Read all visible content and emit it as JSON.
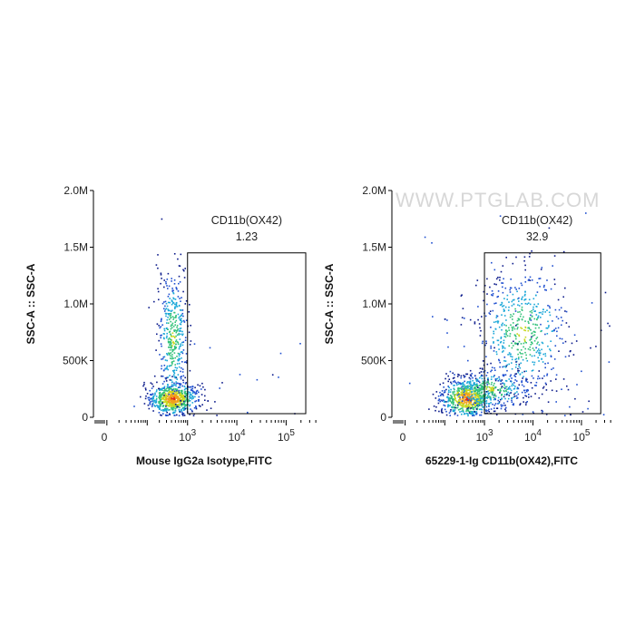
{
  "watermark": "WWW.PTGLAB.COM",
  "colors": {
    "density": [
      "#0b1a8a",
      "#1f4fd0",
      "#1aa7d8",
      "#33c27a",
      "#c7d81e",
      "#f0a11b",
      "#e02a14"
    ],
    "gate": "#000000",
    "axis": "#000000"
  },
  "chart_data": [
    {
      "type": "scatter",
      "title": "",
      "xlabel": "Mouse IgG2a Isotype,FITC",
      "ylabel": "SSC-A :: SSC-A",
      "x_scale": "biexponential",
      "x_ticks": [
        "0",
        "10^3",
        "10^4",
        "10^5"
      ],
      "y_ticks": [
        "0",
        "500K",
        "1.0M",
        "1.5M",
        "2.0M"
      ],
      "ylim": [
        0,
        2000000
      ],
      "gate": {
        "name": "CD11b(OX42)",
        "value": "1.23",
        "x_range": [
          1000,
          250000
        ],
        "y_range": [
          0,
          1450000
        ]
      },
      "populations": [
        {
          "x": 420,
          "y": 170000,
          "count": 700,
          "sx": 0.28,
          "sy": 70000,
          "note": "dense core"
        },
        {
          "x": 420,
          "y": 700000,
          "count": 420,
          "sx": 0.18,
          "sy": 300000,
          "note": "vertical streak"
        },
        {
          "x": 20000,
          "y": 350000,
          "count": 30,
          "sx": 1.6,
          "sy": 280000,
          "note": "sparse gated events"
        }
      ]
    },
    {
      "type": "scatter",
      "title": "",
      "xlabel": "65229-1-Ig CD11b(OX42),FITC",
      "ylabel": "SSC-A :: SSC-A",
      "x_scale": "biexponential",
      "x_ticks": [
        "0",
        "10^3",
        "10^4",
        "10^5"
      ],
      "y_ticks": [
        "0",
        "500K",
        "1.0M",
        "1.5M",
        "2.0M"
      ],
      "ylim": [
        0,
        2000000
      ],
      "gate": {
        "name": "CD11b(OX42)",
        "value": "32.9",
        "x_range": [
          1000,
          250000
        ],
        "y_range": [
          0,
          1450000
        ]
      },
      "populations": [
        {
          "x": 350,
          "y": 170000,
          "count": 650,
          "sx": 0.32,
          "sy": 80000,
          "note": "negative core"
        },
        {
          "x": 1200,
          "y": 250000,
          "count": 350,
          "sx": 0.45,
          "sy": 90000,
          "note": "bridge low SSC"
        },
        {
          "x": 6000,
          "y": 750000,
          "count": 520,
          "sx": 0.45,
          "sy": 280000,
          "note": "CD11b+ cluster"
        },
        {
          "x": 5000,
          "y": 600000,
          "count": 120,
          "sx": 1.1,
          "sy": 450000,
          "note": "scattered events"
        }
      ]
    }
  ]
}
